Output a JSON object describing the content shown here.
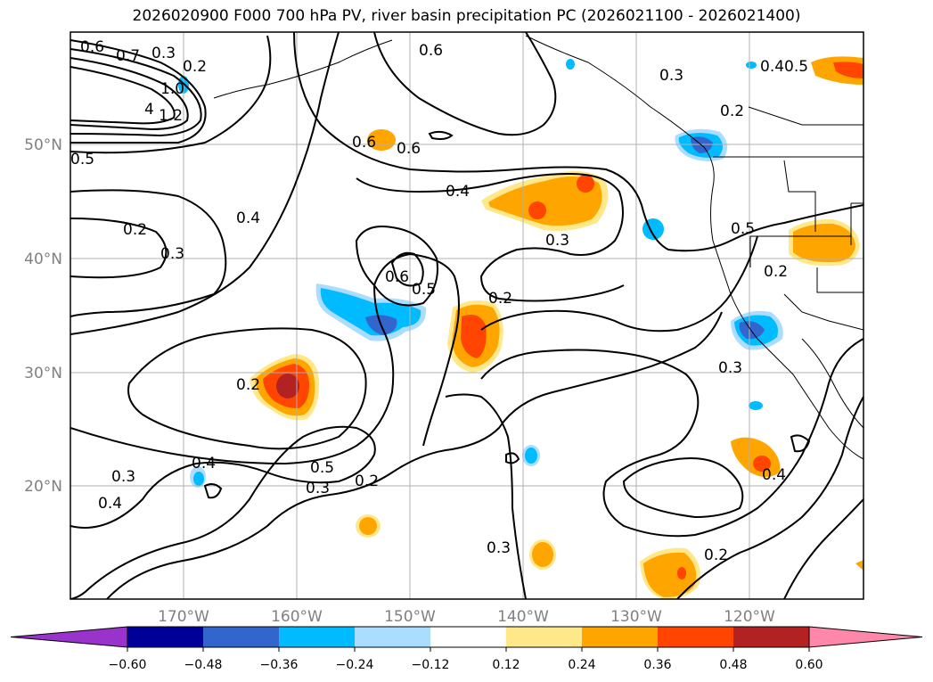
{
  "title": "2026020900 F000 700 hPa PV, river basin precipitation PC (2026021100 - 2026021400)",
  "lat_labels": [
    "50°N",
    "40°N",
    "30°N",
    "20°N"
  ],
  "lon_labels": [
    "170°W",
    "160°W",
    "150°W",
    "140°W",
    "130°W",
    "120°W"
  ],
  "colorbar": {
    "ticks": [
      "−0.60",
      "−0.48",
      "−0.36",
      "−0.24",
      "−0.12",
      "0.12",
      "0.24",
      "0.36",
      "0.48",
      "0.60"
    ],
    "colors": [
      "#9933cc",
      "#000099",
      "#3366cc",
      "#00bbff",
      "#aaddff",
      "#ffffff",
      "#ffe88a",
      "#ffa500",
      "#ff4500",
      "#b22222",
      "#ff88aa"
    ]
  },
  "contour_labels": [
    "0.6",
    "0.7",
    "0.3",
    "0.2",
    "1.0",
    "1.2",
    "4",
    "0.5",
    "0.6",
    "0.6",
    "0.6",
    "0.3",
    "0.4",
    "0.5",
    "0.2",
    "0.4",
    "0.2",
    "0.3",
    "0.4",
    "0.6",
    "0.5",
    "0.3",
    "0.2",
    "0.5",
    "0.2",
    "0.3",
    "0.2",
    "0.4",
    "0.3",
    "0.4",
    "0.5",
    "0.3",
    "0.2",
    "0.3",
    "0.4",
    "0.2"
  ],
  "colors": {
    "axis_label": "#808080",
    "contour": "#000000",
    "grid": "#b0b0b0"
  }
}
